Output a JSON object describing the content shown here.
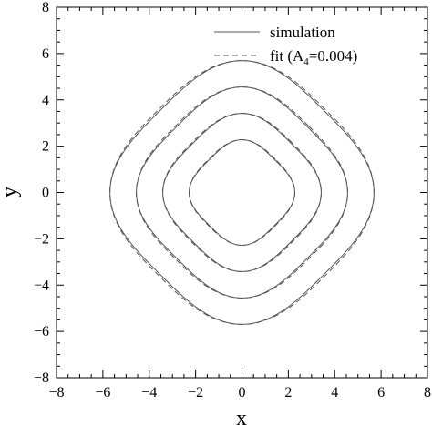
{
  "chart_data": {
    "type": "line",
    "xlabel": "x",
    "ylabel": "y",
    "xlim": [
      -8,
      8
    ],
    "ylim": [
      -8,
      8
    ],
    "xticks": [
      -8,
      -6,
      -4,
      -2,
      0,
      2,
      4,
      6,
      8
    ],
    "yticks": [
      -8,
      -6,
      -4,
      -2,
      0,
      2,
      4,
      6,
      8
    ],
    "grid": false,
    "legend_position": "top-right",
    "contour_radii": [
      2,
      3,
      4,
      5
    ],
    "fit_a4": 0.004,
    "series": [
      {
        "name": "simulation",
        "style": "solid",
        "color": "#555555"
      },
      {
        "name": "fit (A4=0.004)",
        "style": "dashed",
        "color": "#555555"
      }
    ]
  },
  "legend": {
    "simulation": "simulation",
    "fit_prefix": "fit (A",
    "fit_sub": "4",
    "fit_suffix": "=0.004)"
  }
}
